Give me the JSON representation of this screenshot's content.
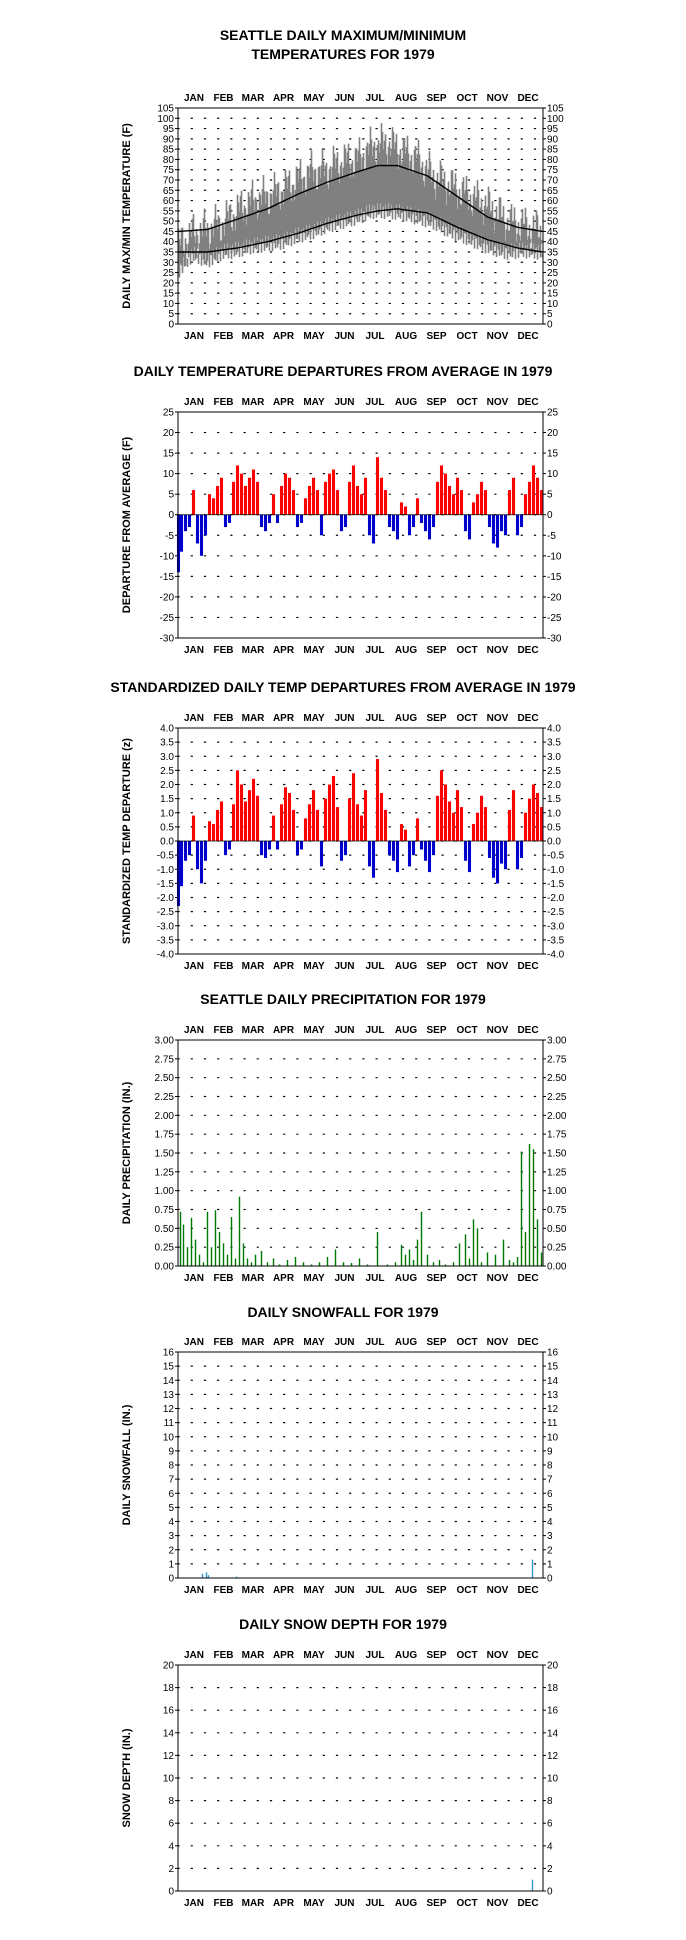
{
  "months": [
    "JAN",
    "FEB",
    "MAR",
    "APR",
    "MAY",
    "JUN",
    "JUL",
    "AUG",
    "SEP",
    "OCT",
    "NOV",
    "DEC"
  ],
  "colors": {
    "axis": "#000000",
    "max_temp": "#808080",
    "normal_line": "#000000",
    "positive": "#ff0000",
    "negative": "#0000cc",
    "precip": "#007700",
    "snow": "#3399cc"
  },
  "chart_data": [
    {
      "id": "temps",
      "type": "area",
      "title": "SEATTLE DAILY MAXIMUM/MINIMUM",
      "title2": "TEMPERATURES FOR 1979",
      "ylabel": "DAILY MAX/MIN TEMPERATURE (F)",
      "ylim": [
        0,
        105
      ],
      "ystep": 5,
      "decimals": 0,
      "grid": true,
      "x_unit": "day of year",
      "days": 365,
      "series": [
        {
          "name": "",
          "kind": "band",
          "x": [
            1,
            15,
            30,
            45,
            60,
            75,
            90,
            105,
            120,
            135,
            150,
            165,
            180,
            195,
            210,
            225,
            240,
            255,
            270,
            285,
            300,
            315,
            330,
            345,
            365
          ],
          "low": [
            26,
            34,
            31,
            35,
            36,
            38,
            39,
            40,
            43,
            45,
            48,
            50,
            52,
            55,
            55,
            54,
            52,
            50,
            46,
            43,
            40,
            37,
            35,
            36,
            35
          ],
          "high": [
            38,
            44,
            46,
            49,
            55,
            60,
            62,
            65,
            70,
            74,
            75,
            79,
            80,
            86,
            88,
            84,
            80,
            72,
            68,
            64,
            60,
            56,
            50,
            48,
            45
          ]
        },
        {
          "name": "",
          "kind": "line",
          "x": [
            1,
            30,
            60,
            90,
            120,
            150,
            180,
            200,
            220,
            250,
            280,
            310,
            340,
            365
          ],
          "values": [
            45,
            46,
            51,
            56,
            63,
            69,
            74,
            77,
            77,
            72,
            62,
            52,
            47,
            45
          ]
        },
        {
          "name": "",
          "kind": "line",
          "x": [
            1,
            30,
            60,
            90,
            120,
            150,
            180,
            200,
            220,
            250,
            280,
            310,
            340,
            365
          ],
          "values": [
            35,
            35,
            37,
            40,
            44,
            49,
            53,
            55,
            56,
            54,
            47,
            41,
            37,
            35
          ]
        }
      ]
    },
    {
      "id": "departures",
      "type": "bar",
      "title": "DAILY TEMPERATURE DEPARTURES FROM AVERAGE IN 1979",
      "ylabel": "DEPARTURE FROM AVERAGE (F)",
      "ylim": [
        -30,
        25
      ],
      "ystep": 5,
      "decimals": 0,
      "grid": true,
      "x_unit": "day of year",
      "days": 365,
      "series": [
        {
          "name": "",
          "x": [
            1,
            4,
            8,
            12,
            16,
            20,
            24,
            28,
            32,
            36,
            40,
            44,
            48,
            52,
            56,
            60,
            64,
            68,
            72,
            76,
            80,
            84,
            88,
            92,
            96,
            100,
            104,
            108,
            112,
            116,
            120,
            124,
            128,
            132,
            136,
            140,
            144,
            148,
            152,
            156,
            160,
            164,
            168,
            172,
            176,
            180,
            184,
            188,
            192,
            196,
            200,
            204,
            208,
            212,
            216,
            220,
            224,
            228,
            232,
            236,
            240,
            244,
            248,
            252,
            256,
            260,
            264,
            268,
            272,
            276,
            280,
            284,
            288,
            292,
            296,
            300,
            304,
            308,
            312,
            316,
            320,
            324,
            328,
            332,
            336,
            340,
            344,
            348,
            352,
            356,
            360,
            364
          ],
          "values": [
            -14,
            -9,
            -4,
            -3,
            6,
            -7,
            -10,
            -5,
            5,
            4,
            7,
            9,
            -3,
            -2,
            8,
            12,
            10,
            7,
            9,
            11,
            8,
            -3,
            -4,
            -2,
            5,
            -2,
            7,
            10,
            9,
            6,
            -3,
            -2,
            4,
            7,
            9,
            6,
            -5,
            8,
            10,
            11,
            6,
            -4,
            -3,
            8,
            12,
            7,
            5,
            9,
            -5,
            -7,
            14,
            9,
            6,
            -3,
            -4,
            -6,
            3,
            2,
            -5,
            -3,
            4,
            -2,
            -4,
            -6,
            -3,
            8,
            12,
            10,
            7,
            5,
            9,
            6,
            -4,
            -6,
            3,
            5,
            8,
            6,
            -3,
            -7,
            -8,
            -4,
            -5,
            6,
            9,
            -5,
            -3,
            5,
            8,
            12,
            9,
            6
          ]
        }
      ]
    },
    {
      "id": "standardized",
      "type": "bar",
      "title": "STANDARDIZED DAILY TEMP DEPARTURES FROM AVERAGE IN 1979",
      "ylabel": "STANDARDIZED TEMP DEPARTURE (z)",
      "ylim": [
        -4.0,
        4.0
      ],
      "ystep": 0.5,
      "decimals": 1,
      "grid": true,
      "x_unit": "day of year",
      "days": 365,
      "series": [
        {
          "name": "",
          "x": [
            1,
            4,
            8,
            12,
            16,
            20,
            24,
            28,
            32,
            36,
            40,
            44,
            48,
            52,
            56,
            60,
            64,
            68,
            72,
            76,
            80,
            84,
            88,
            92,
            96,
            100,
            104,
            108,
            112,
            116,
            120,
            124,
            128,
            132,
            136,
            140,
            144,
            148,
            152,
            156,
            160,
            164,
            168,
            172,
            176,
            180,
            184,
            188,
            192,
            196,
            200,
            204,
            208,
            212,
            216,
            220,
            224,
            228,
            232,
            236,
            240,
            244,
            248,
            252,
            256,
            260,
            264,
            268,
            272,
            276,
            280,
            284,
            288,
            292,
            296,
            300,
            304,
            308,
            312,
            316,
            320,
            324,
            328,
            332,
            336,
            340,
            344,
            348,
            352,
            356,
            360,
            364
          ],
          "values": [
            -2.3,
            -1.6,
            -0.7,
            -0.5,
            0.9,
            -1.0,
            -1.5,
            -0.7,
            0.7,
            0.6,
            1.1,
            1.4,
            -0.5,
            -0.3,
            1.3,
            2.5,
            2.0,
            1.4,
            1.8,
            2.2,
            1.6,
            -0.5,
            -0.6,
            -0.3,
            0.9,
            -0.3,
            1.3,
            1.9,
            1.7,
            1.1,
            -0.5,
            -0.3,
            0.8,
            1.3,
            1.8,
            1.1,
            -0.9,
            1.5,
            2.0,
            2.3,
            1.2,
            -0.7,
            -0.5,
            1.5,
            2.4,
            1.3,
            0.9,
            1.8,
            -0.9,
            -1.3,
            2.9,
            1.7,
            1.1,
            -0.5,
            -0.7,
            -1.1,
            0.6,
            0.4,
            -0.9,
            -0.5,
            0.8,
            -0.3,
            -0.7,
            -1.1,
            -0.5,
            1.6,
            2.5,
            2.0,
            1.4,
            1.0,
            1.8,
            1.2,
            -0.7,
            -1.1,
            0.6,
            1.0,
            1.6,
            1.2,
            -0.6,
            -1.3,
            -1.5,
            -0.8,
            -1.0,
            1.1,
            1.8,
            -1.0,
            -0.6,
            1.0,
            1.5,
            2.0,
            1.7,
            1.2
          ]
        }
      ]
    },
    {
      "id": "precip",
      "type": "bar",
      "title": "SEATTLE DAILY PRECIPITATION FOR 1979",
      "ylabel": "DAILY PRECIPITATION (IN.)",
      "ylim": [
        0,
        3.0
      ],
      "ystep": 0.25,
      "decimals": 2,
      "grid": true,
      "x_unit": "day of year",
      "days": 365,
      "series": [
        {
          "name": "",
          "x": [
            3,
            6,
            10,
            14,
            18,
            22,
            26,
            30,
            34,
            38,
            42,
            46,
            50,
            54,
            58,
            62,
            66,
            70,
            74,
            78,
            84,
            90,
            96,
            102,
            110,
            118,
            126,
            134,
            142,
            150,
            158,
            166,
            174,
            182,
            190,
            200,
            210,
            218,
            224,
            228,
            232,
            236,
            240,
            244,
            250,
            256,
            262,
            268,
            276,
            282,
            288,
            292,
            296,
            300,
            304,
            310,
            318,
            326,
            332,
            336,
            340,
            344,
            348,
            352,
            356,
            360,
            364
          ],
          "values": [
            0.72,
            0.55,
            0.25,
            0.64,
            0.35,
            0.15,
            0.05,
            0.72,
            0.25,
            0.74,
            0.45,
            0.3,
            0.15,
            0.65,
            0.1,
            0.92,
            0.3,
            0.1,
            0.05,
            0.15,
            0.2,
            0.05,
            0.1,
            0.02,
            0.08,
            0.12,
            0.05,
            0.02,
            0.05,
            0.12,
            0.22,
            0.05,
            0.04,
            0.1,
            0.02,
            0.45,
            0.02,
            0.05,
            0.28,
            0.15,
            0.22,
            0.08,
            0.35,
            0.72,
            0.15,
            0.05,
            0.08,
            0.02,
            0.05,
            0.3,
            0.42,
            0.1,
            0.62,
            0.5,
            0.05,
            0.18,
            0.15,
            0.35,
            0.08,
            0.05,
            0.12,
            1.52,
            0.45,
            1.62,
            1.55,
            0.62,
            0.18
          ]
        }
      ]
    },
    {
      "id": "snowfall",
      "type": "bar",
      "title": "DAILY SNOWFALL FOR 1979",
      "ylabel": "DAILY SNOWFALL (IN.)",
      "ylim": [
        0,
        16
      ],
      "ystep": 1,
      "decimals": 0,
      "grid": true,
      "x_unit": "day of year",
      "days": 365,
      "series": [
        {
          "name": "",
          "x": [
            25,
            29,
            31,
            59,
            355
          ],
          "values": [
            0.3,
            0.4,
            0.2,
            0.1,
            1.3
          ]
        }
      ]
    },
    {
      "id": "snowdepth",
      "type": "bar",
      "title": "DAILY SNOW DEPTH FOR 1979",
      "ylabel": "SNOW DEPTH (IN.)",
      "ylim": [
        0,
        20
      ],
      "ystep": 2,
      "decimals": 0,
      "grid": true,
      "x_unit": "day of year",
      "days": 365,
      "series": [
        {
          "name": "",
          "x": [
            355
          ],
          "values": [
            1
          ]
        }
      ]
    }
  ]
}
